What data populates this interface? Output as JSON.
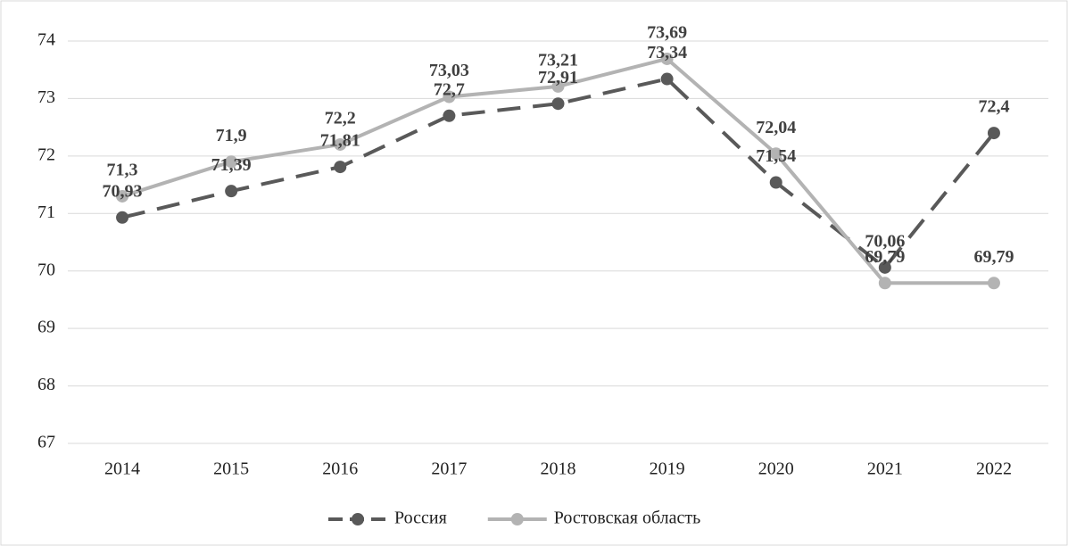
{
  "chart_data": {
    "type": "line",
    "categories": [
      "2014",
      "2015",
      "2016",
      "2017",
      "2018",
      "2019",
      "2020",
      "2021",
      "2022"
    ],
    "series": [
      {
        "name": "Россия",
        "color": "#595959",
        "dashed": true,
        "values": [
          70.93,
          71.39,
          71.81,
          72.7,
          72.91,
          73.34,
          71.54,
          70.06,
          72.4
        ],
        "value_labels": [
          "70,93",
          "71,39",
          "71,81",
          "72,7",
          "72,91",
          "73,34",
          "71,54",
          "70,06",
          "72,4"
        ]
      },
      {
        "name": "Ростовская область",
        "color": "#b3b3b3",
        "dashed": false,
        "values": [
          71.3,
          71.9,
          72.2,
          73.03,
          73.21,
          73.69,
          72.04,
          69.79,
          69.79
        ],
        "value_labels": [
          "71,3",
          "71,9",
          "72,2",
          "73,03",
          "73,21",
          "73,69",
          "72,04",
          "69,79",
          "69,79"
        ]
      }
    ],
    "ylim": [
      67,
      74
    ],
    "yticks": [
      67,
      68,
      69,
      70,
      71,
      72,
      73,
      74
    ],
    "grid": true,
    "legend": "bottom"
  }
}
